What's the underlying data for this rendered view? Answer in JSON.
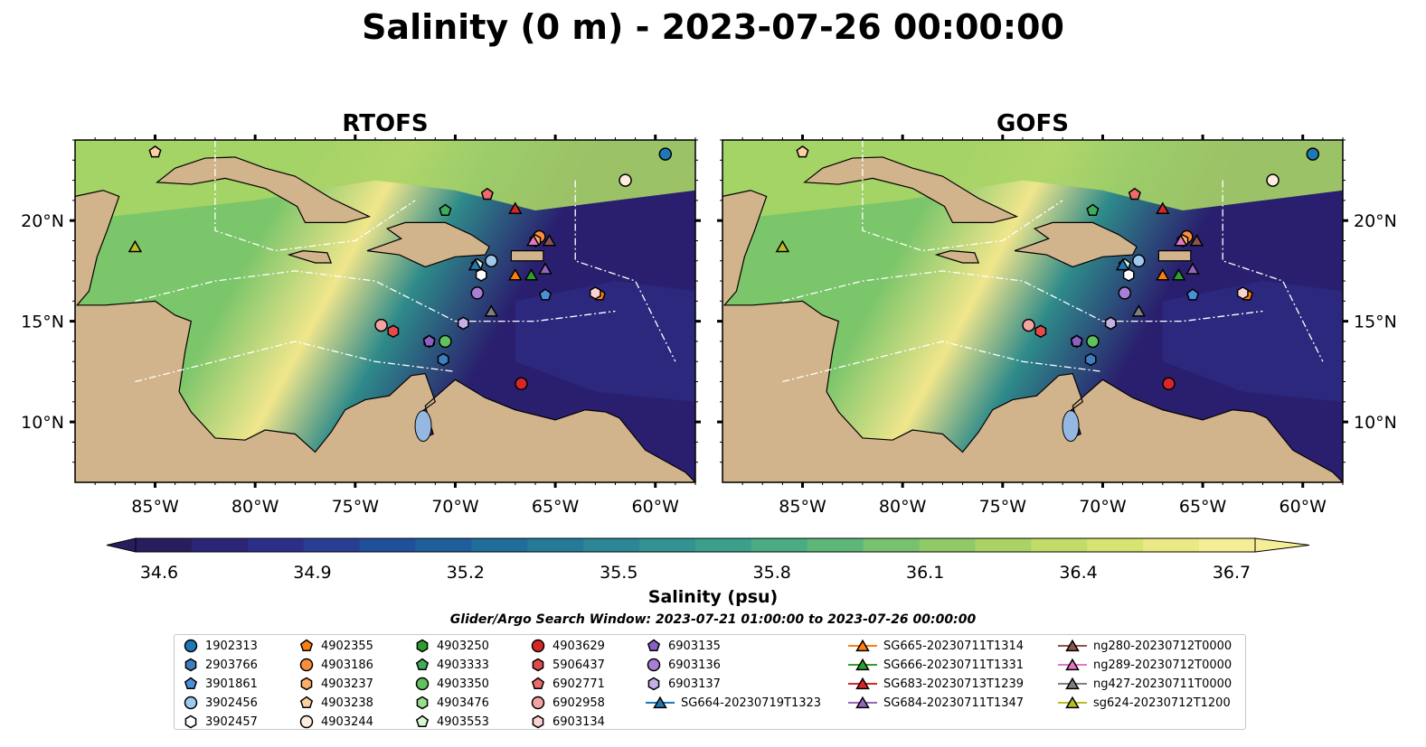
{
  "title": "Salinity (0 m) - 2023-07-26 00:00:00",
  "panels": [
    {
      "title": "RTOFS"
    },
    {
      "title": "GOFS"
    }
  ],
  "map": {
    "lon_range": [
      -89,
      -58
    ],
    "lat_range": [
      7,
      24
    ],
    "lon_ticks": [
      {
        "lon": -85,
        "label": "85°W"
      },
      {
        "lon": -80,
        "label": "80°W"
      },
      {
        "lon": -75,
        "label": "75°W"
      },
      {
        "lon": -70,
        "label": "70°W"
      },
      {
        "lon": -65,
        "label": "65°W"
      },
      {
        "lon": -60,
        "label": "60°W"
      }
    ],
    "lat_ticks": [
      {
        "lat": 20,
        "label": "20°N"
      },
      {
        "lat": 15,
        "label": "15°N"
      },
      {
        "lat": 10,
        "label": "10°N"
      }
    ],
    "land_color": "#d2b48c",
    "ocean_colors": {
      "low": "#2a1f6e",
      "mid": "#2e8a8a",
      "high": "#7bc56a",
      "max": "#f0e68c"
    }
  },
  "colorbar": {
    "label": "Salinity (psu)",
    "min": 34.6,
    "max": 36.7,
    "ticks": [
      "34.6",
      "34.9",
      "35.2",
      "35.5",
      "35.8",
      "36.1",
      "36.4",
      "36.7"
    ],
    "colors": [
      "#2a1d5e",
      "#2a2577",
      "#2b2f8a",
      "#283e94",
      "#21509a",
      "#1e5f9b",
      "#1f6d9a",
      "#257a98",
      "#2b8796",
      "#319492",
      "#3aa08c",
      "#4aac83",
      "#5eb779",
      "#77c16f",
      "#90ca67",
      "#aad364",
      "#c2dc68",
      "#d8e472",
      "#ebe985",
      "#f6ee96"
    ]
  },
  "search_window": "Glider/Argo Search Window: 2023-07-21 01:00:00 to 2023-07-26 00:00:00",
  "legend": [
    {
      "label": "1902313",
      "marker": "circle",
      "color": "#1f77b4",
      "col": 0,
      "row": 0
    },
    {
      "label": "2903766",
      "marker": "hexagon",
      "color": "#3d7fbf",
      "col": 0,
      "row": 1
    },
    {
      "label": "3901861",
      "marker": "pentagon",
      "color": "#4a90d9",
      "col": 0,
      "row": 2
    },
    {
      "label": "3902456",
      "marker": "circle",
      "color": "#9ec8ec",
      "col": 0,
      "row": 3
    },
    {
      "label": "3902457",
      "marker": "hexagon",
      "color": "#ffffff",
      "col": 0,
      "row": 4
    },
    {
      "label": "4902355",
      "marker": "pentagon",
      "color": "#ff7f0e",
      "col": 1,
      "row": 0
    },
    {
      "label": "4903186",
      "marker": "circle",
      "color": "#fd8d3c",
      "col": 1,
      "row": 1
    },
    {
      "label": "4903237",
      "marker": "hexagon",
      "color": "#fdae6b",
      "col": 1,
      "row": 2
    },
    {
      "label": "4903238",
      "marker": "pentagon",
      "color": "#fdd0a2",
      "col": 1,
      "row": 3
    },
    {
      "label": "4903244",
      "marker": "circle",
      "color": "#feedde",
      "col": 1,
      "row": 4
    },
    {
      "label": "4903250",
      "marker": "hexagon",
      "color": "#2ca02c",
      "col": 2,
      "row": 0
    },
    {
      "label": "4903333",
      "marker": "pentagon",
      "color": "#41ab5d",
      "col": 2,
      "row": 1
    },
    {
      "label": "4903350",
      "marker": "circle",
      "color": "#5fc25f",
      "col": 2,
      "row": 2
    },
    {
      "label": "4903476",
      "marker": "hexagon",
      "color": "#98df8a",
      "col": 2,
      "row": 3
    },
    {
      "label": "4903553",
      "marker": "pentagon",
      "color": "#d9f5d3",
      "col": 2,
      "row": 4
    },
    {
      "label": "4903629",
      "marker": "circle",
      "color": "#d62728",
      "col": 3,
      "row": 0
    },
    {
      "label": "5906437",
      "marker": "hexagon",
      "color": "#e34a4a",
      "col": 3,
      "row": 1
    },
    {
      "label": "6902771",
      "marker": "pentagon",
      "color": "#ef6a6a",
      "col": 3,
      "row": 2
    },
    {
      "label": "6902958",
      "marker": "circle",
      "color": "#f4a3a3",
      "col": 3,
      "row": 3
    },
    {
      "label": "6903134",
      "marker": "hexagon",
      "color": "#fcd1d1",
      "col": 3,
      "row": 4
    },
    {
      "label": "6903135",
      "marker": "pentagon",
      "color": "#8b5fc4",
      "col": 4,
      "row": 0
    },
    {
      "label": "6903136",
      "marker": "circle",
      "color": "#a97ed6",
      "col": 4,
      "row": 1
    },
    {
      "label": "6903137",
      "marker": "hexagon",
      "color": "#c5b0e6",
      "col": 4,
      "row": 2
    },
    {
      "label": "SG664-20230719T1323",
      "marker": "triangle-line",
      "color": "#1f77b4",
      "col": 4,
      "row": 3
    },
    {
      "label": "SG665-20230711T1314",
      "marker": "triangle-line",
      "color": "#ff7f0e",
      "col": 5,
      "row": 0
    },
    {
      "label": "SG666-20230711T1331",
      "marker": "triangle-line",
      "color": "#2ca02c",
      "col": 5,
      "row": 1
    },
    {
      "label": "SG683-20230713T1239",
      "marker": "triangle-line",
      "color": "#d62728",
      "col": 5,
      "row": 2
    },
    {
      "label": "SG684-20230711T1347",
      "marker": "triangle-line",
      "color": "#9467bd",
      "col": 5,
      "row": 3
    },
    {
      "label": "ng280-20230712T0000",
      "marker": "triangle-line",
      "color": "#8c564b",
      "col": 6,
      "row": 0
    },
    {
      "label": "ng289-20230712T0000",
      "marker": "triangle-line",
      "color": "#e377c2",
      "col": 6,
      "row": 1
    },
    {
      "label": "ng427-20230711T0000",
      "marker": "triangle-line",
      "color": "#7f7f7f",
      "col": 6,
      "row": 2
    },
    {
      "label": "sg624-20230712T1200",
      "marker": "triangle-line",
      "color": "#bcbd22",
      "col": 6,
      "row": 3
    }
  ],
  "points": [
    {
      "label": "1902313",
      "lon": -59.5,
      "lat": 23.3
    },
    {
      "label": "2903766",
      "lon": -70.6,
      "lat": 13.1
    },
    {
      "label": "3901861",
      "lon": -65.5,
      "lat": 16.3
    },
    {
      "label": "3902456",
      "lon": -68.2,
      "lat": 18.0
    },
    {
      "label": "3902457",
      "lon": -68.7,
      "lat": 17.3
    },
    {
      "label": "4902355",
      "lon": -62.8,
      "lat": 16.3
    },
    {
      "label": "4903186",
      "lon": -65.8,
      "lat": 19.2
    },
    {
      "label": "4903237",
      "lon": -66.0,
      "lat": 19.0
    },
    {
      "label": "4903238",
      "lon": -85.0,
      "lat": 23.4
    },
    {
      "label": "4903244",
      "lon": -61.5,
      "lat": 22.0
    },
    {
      "label": "4903250",
      "lon": -71.3,
      "lat": 14.0
    },
    {
      "label": "4903333",
      "lon": -70.5,
      "lat": 20.5
    },
    {
      "label": "4903350",
      "lon": -70.5,
      "lat": 14.0
    },
    {
      "label": "4903476",
      "lon": -69.6,
      "lat": 14.9
    },
    {
      "label": "4903553",
      "lon": -68.9,
      "lat": 17.8
    },
    {
      "label": "4903629",
      "lon": -66.7,
      "lat": 11.9
    },
    {
      "label": "5906437",
      "lon": -73.1,
      "lat": 14.5
    },
    {
      "label": "6902771",
      "lon": -68.4,
      "lat": 21.3
    },
    {
      "label": "6902958",
      "lon": -73.7,
      "lat": 14.8
    },
    {
      "label": "6903134",
      "lon": -63.0,
      "lat": 16.4
    },
    {
      "label": "6903135",
      "lon": -71.3,
      "lat": 14.0
    },
    {
      "label": "6903136",
      "lon": -68.9,
      "lat": 16.4
    },
    {
      "label": "6903137",
      "lon": -69.6,
      "lat": 14.9
    },
    {
      "label": "SG664-20230719T1323",
      "lon": -69.0,
      "lat": 17.8
    },
    {
      "label": "SG665-20230711T1314",
      "lon": -67.0,
      "lat": 17.3
    },
    {
      "label": "SG666-20230711T1331",
      "lon": -66.2,
      "lat": 17.3
    },
    {
      "label": "SG683-20230713T1239",
      "lon": -67.0,
      "lat": 20.6
    },
    {
      "label": "SG684-20230711T1347",
      "lon": -65.5,
      "lat": 17.6
    },
    {
      "label": "ng280-20230712T0000",
      "lon": -65.3,
      "lat": 19.0
    },
    {
      "label": "ng289-20230712T0000",
      "lon": -66.1,
      "lat": 19.0
    },
    {
      "label": "ng427-20230711T0000",
      "lon": -68.2,
      "lat": 15.5
    },
    {
      "label": "sg624-20230712T1200",
      "lon": -86.0,
      "lat": 18.7
    }
  ]
}
